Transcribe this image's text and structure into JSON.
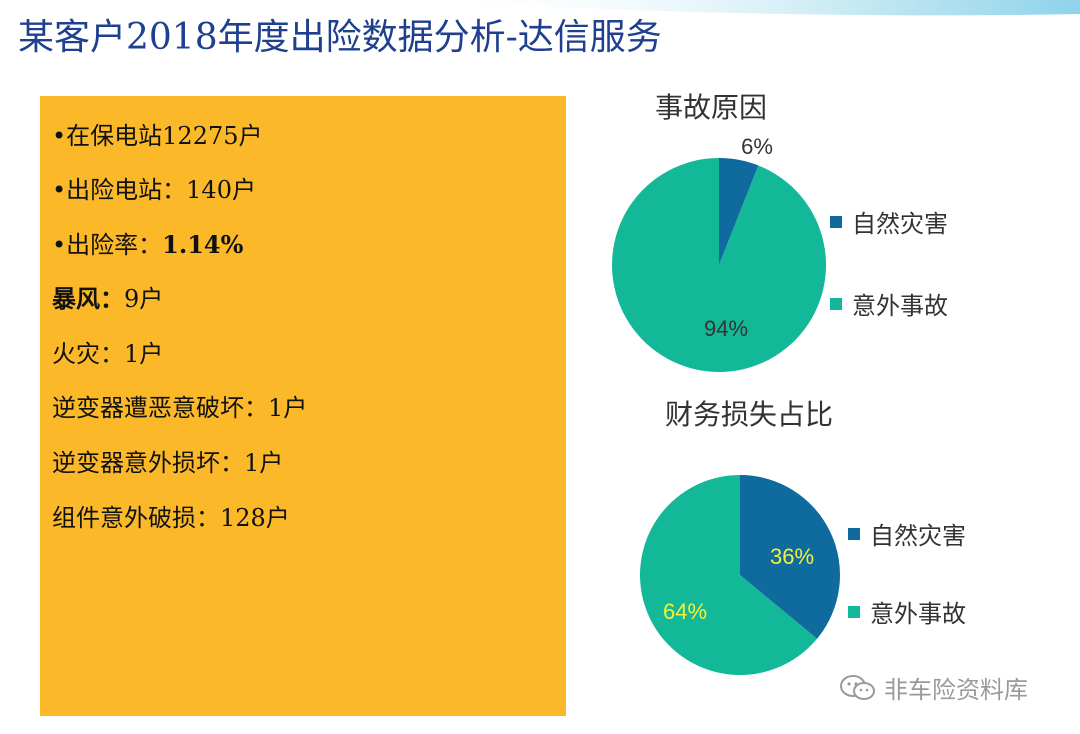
{
  "title": "某客户2018年度出险数据分析-达信服务",
  "info_lines": [
    {
      "label": "•在保电站",
      "value": "12275户",
      "style": "normal"
    },
    {
      "label": "•出险电站：",
      "value": "140户",
      "style": "normal"
    },
    {
      "label": "•出险率：",
      "value": "1.14%",
      "style": "boldval"
    },
    {
      "label": "暴风：",
      "value": "9户",
      "style": "boldlabel"
    },
    {
      "label": "火灾：",
      "value": "1户",
      "style": "normal"
    },
    {
      "label": "逆变器遭恶意破坏：",
      "value": "1户",
      "style": "normal"
    },
    {
      "label": "逆变器意外损坏：",
      "value": "1户",
      "style": "normal"
    },
    {
      "label": "组件意外破损：",
      "value": "128户",
      "style": "normal"
    }
  ],
  "colors": {
    "box": "#fbb92a",
    "title": "#1f3f8f",
    "natural": "#0f6a9e",
    "accident": "#12b897",
    "label_dark": "#333333",
    "label_yellow": "#f5f03a"
  },
  "chart_data": [
    {
      "type": "pie",
      "title": "事故原因",
      "slices": [
        {
          "label": "自然灾害",
          "value": 6,
          "display": "6%"
        },
        {
          "label": "意外事故",
          "value": 94,
          "display": "94%"
        }
      ],
      "legend_position": "right"
    },
    {
      "type": "pie",
      "title": "财务损失占比",
      "slices": [
        {
          "label": "自然灾害",
          "value": 36,
          "display": "36%"
        },
        {
          "label": "意外事故",
          "value": 64,
          "display": "64%"
        }
      ],
      "legend_position": "right"
    }
  ],
  "watermark": {
    "text": "非车险资料库",
    "icon": "wechat-icon"
  }
}
